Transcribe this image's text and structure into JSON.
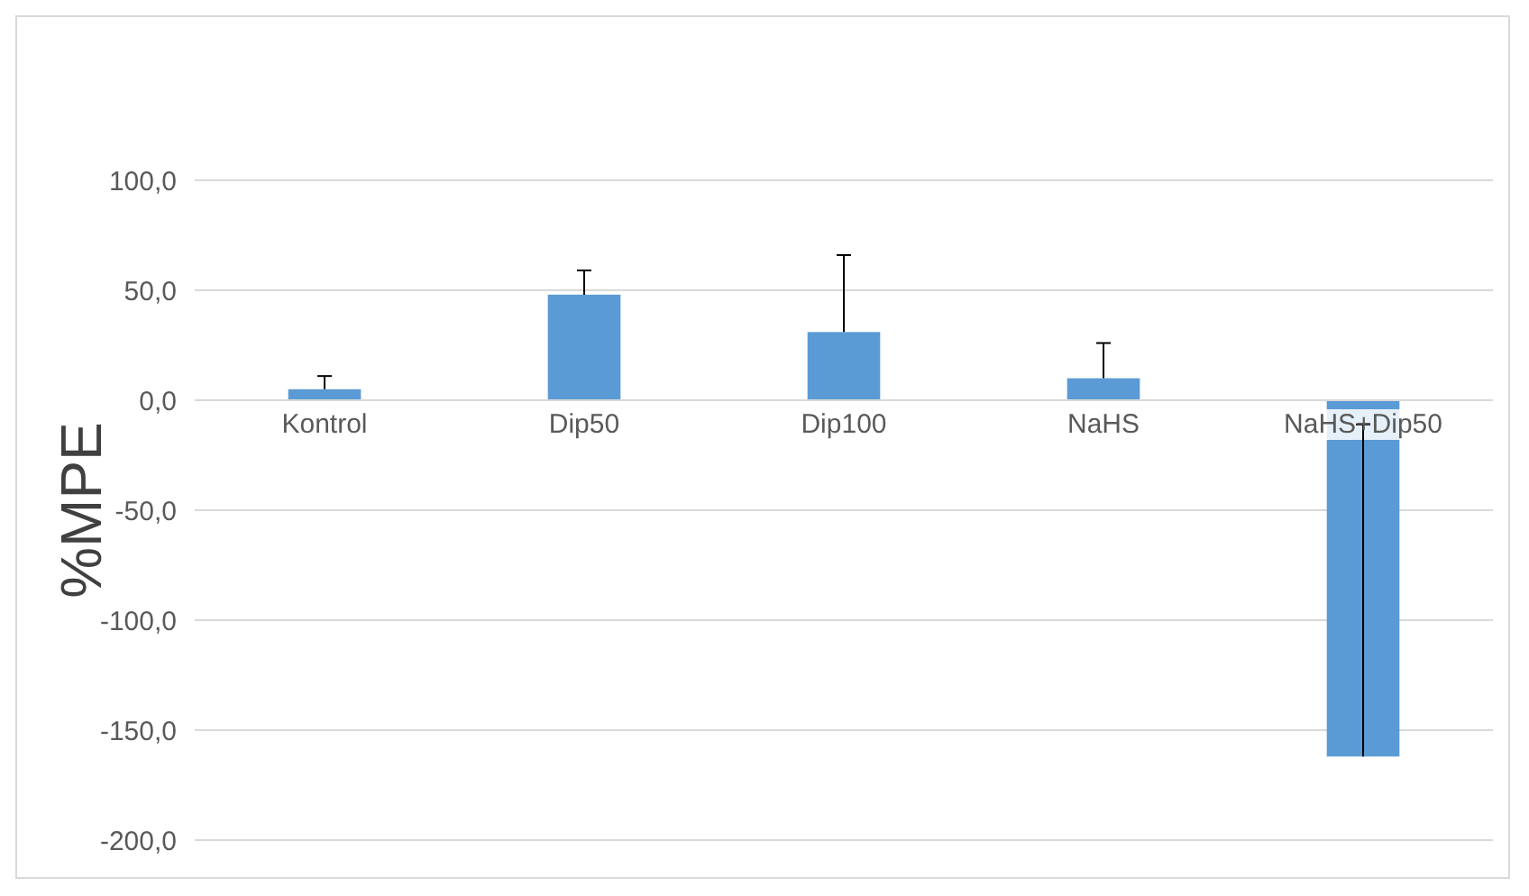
{
  "chart_data": {
    "type": "bar",
    "ylabel": "%MPE",
    "categories": [
      "Kontrol",
      "Dip50",
      "Dip100",
      "NaHS",
      "NaHS+Dip50"
    ],
    "values": [
      5,
      48,
      31,
      10,
      -162
    ],
    "errors": [
      [
        5,
        11
      ],
      [
        48,
        59
      ],
      [
        31,
        66
      ],
      [
        10,
        26
      ],
      [
        -162,
        -11
      ]
    ],
    "color": "#5b9bd5",
    "ylim": [
      -200,
      100
    ],
    "yticks": [
      {
        "value": -200,
        "label": "-200,0"
      },
      {
        "value": -150,
        "label": "-150,0"
      },
      {
        "value": -100,
        "label": "-100,0"
      },
      {
        "value": -50,
        "label": "-50,0"
      },
      {
        "value": 0,
        "label": "0,0"
      },
      {
        "value": 50,
        "label": "50,0"
      },
      {
        "value": 100,
        "label": "100,0"
      }
    ],
    "grid": "y"
  }
}
